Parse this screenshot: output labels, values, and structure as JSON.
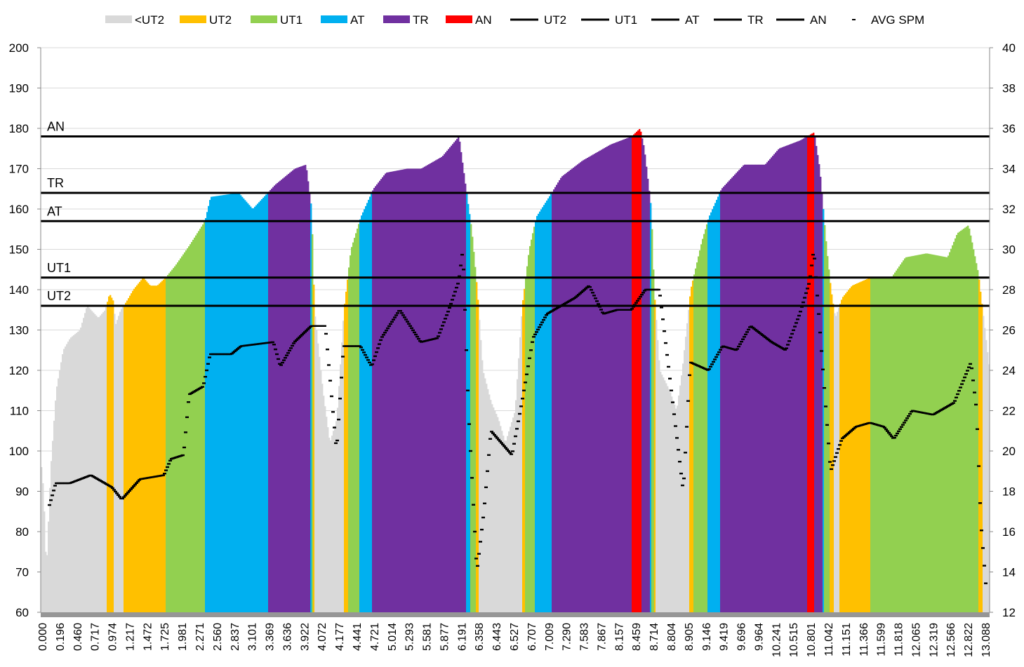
{
  "chart_data": {
    "type": "area",
    "title": "",
    "legend_position": "top",
    "legend": [
      {
        "label": "<UT2",
        "kind": "area",
        "color": "#d9d9d9"
      },
      {
        "label": "UT2",
        "kind": "area",
        "color": "#ffc000"
      },
      {
        "label": "UT1",
        "kind": "area",
        "color": "#92d050"
      },
      {
        "label": "AT",
        "kind": "area",
        "color": "#00b0f0"
      },
      {
        "label": "TR",
        "kind": "area",
        "color": "#7030a0"
      },
      {
        "label": "AN",
        "kind": "area",
        "color": "#ff0000"
      },
      {
        "label": "UT2",
        "kind": "line",
        "color": "#000000"
      },
      {
        "label": "UT1",
        "kind": "line",
        "color": "#000000"
      },
      {
        "label": "AT",
        "kind": "line",
        "color": "#000000"
      },
      {
        "label": "TR",
        "kind": "line",
        "color": "#000000"
      },
      {
        "label": "AN",
        "kind": "line",
        "color": "#000000"
      },
      {
        "label": "AVG SPM",
        "kind": "marker",
        "color": "#000000"
      }
    ],
    "y_left": {
      "min": 60,
      "max": 200,
      "step": 10
    },
    "y_right": {
      "min": 12,
      "max": 40,
      "step": 2
    },
    "grid": true,
    "x_tick_labels": [
      "0.000",
      "0.196",
      "0.460",
      "0.717",
      "0.974",
      "1.217",
      "1.472",
      "1.725",
      "1.981",
      "2.271",
      "2.560",
      "2.837",
      "3.101",
      "3.369",
      "3.636",
      "3.922",
      "4.072",
      "4.177",
      "4.441",
      "4.721",
      "5.014",
      "5.293",
      "5.581",
      "5.877",
      "6.191",
      "6.358",
      "6.443",
      "6.527",
      "6.707",
      "7.009",
      "7.290",
      "7.583",
      "7.867",
      "8.157",
      "8.459",
      "8.714",
      "8.804",
      "8.905",
      "9.146",
      "9.419",
      "9.696",
      "9.964",
      "10.241",
      "10.515",
      "10.801",
      "11.042",
      "11.151",
      "11.366",
      "11.599",
      "11.818",
      "12.065",
      "12.319",
      "12.566",
      "12.822",
      "13.088"
    ],
    "thresholds": [
      {
        "label": "AN",
        "value": 178
      },
      {
        "label": "TR",
        "value": 164
      },
      {
        "label": "AT",
        "value": 157
      },
      {
        "label": "UT1",
        "value": 143
      },
      {
        "label": "UT2",
        "value": 136
      }
    ],
    "zone_colors": {
      "below_UT2": "#d9d9d9",
      "UT2": "#ffc000",
      "UT1": "#92d050",
      "AT": "#00b0f0",
      "TR": "#7030a0",
      "AN": "#ff0000"
    },
    "samples": 676,
    "heart_rate_keypoints": [
      [
        0,
        98
      ],
      [
        2,
        90
      ],
      [
        4,
        70
      ],
      [
        7,
        95
      ],
      [
        11,
        115
      ],
      [
        16,
        125
      ],
      [
        21,
        128
      ],
      [
        28,
        130
      ],
      [
        33,
        136
      ],
      [
        41,
        133
      ],
      [
        46,
        135
      ],
      [
        49,
        139
      ],
      [
        52,
        137
      ],
      [
        53,
        131
      ],
      [
        57,
        135
      ],
      [
        61,
        137
      ],
      [
        66,
        140
      ],
      [
        73,
        143
      ],
      [
        78,
        141
      ],
      [
        83,
        141
      ],
      [
        89,
        143
      ],
      [
        96,
        146
      ],
      [
        106,
        151
      ],
      [
        117,
        157
      ],
      [
        121,
        163
      ],
      [
        141,
        164
      ],
      [
        151,
        160
      ],
      [
        167,
        166
      ],
      [
        181,
        170
      ],
      [
        189,
        171
      ],
      [
        193,
        160
      ],
      [
        195,
        135
      ],
      [
        201,
        115
      ],
      [
        206,
        102
      ],
      [
        211,
        108
      ],
      [
        216,
        135
      ],
      [
        221,
        150
      ],
      [
        228,
        158
      ],
      [
        237,
        165
      ],
      [
        246,
        169
      ],
      [
        261,
        170
      ],
      [
        271,
        170
      ],
      [
        286,
        173
      ],
      [
        298,
        178
      ],
      [
        303,
        165
      ],
      [
        307,
        155
      ],
      [
        311,
        140
      ],
      [
        315,
        120
      ],
      [
        321,
        112
      ],
      [
        326,
        108
      ],
      [
        331,
        102
      ],
      [
        338,
        110
      ],
      [
        343,
        136
      ],
      [
        348,
        150
      ],
      [
        353,
        158
      ],
      [
        364,
        164
      ],
      [
        371,
        168
      ],
      [
        386,
        172
      ],
      [
        406,
        176
      ],
      [
        421,
        178
      ],
      [
        427,
        180
      ],
      [
        430,
        175
      ],
      [
        435,
        160
      ],
      [
        437,
        140
      ],
      [
        441,
        120
      ],
      [
        448,
        115
      ],
      [
        453,
        110
      ],
      [
        457,
        120
      ],
      [
        463,
        140
      ],
      [
        471,
        152
      ],
      [
        476,
        158
      ],
      [
        485,
        165
      ],
      [
        501,
        171
      ],
      [
        516,
        171
      ],
      [
        526,
        175
      ],
      [
        541,
        177
      ],
      [
        551,
        179
      ],
      [
        555,
        170
      ],
      [
        560,
        150
      ],
      [
        563,
        140
      ],
      [
        566,
        133
      ],
      [
        571,
        138
      ],
      [
        578,
        141
      ],
      [
        591,
        143
      ],
      [
        606,
        143
      ],
      [
        616,
        148
      ],
      [
        631,
        149
      ],
      [
        646,
        148
      ],
      [
        653,
        154
      ],
      [
        661,
        156
      ],
      [
        668,
        144
      ],
      [
        671,
        135
      ],
      [
        676,
        120
      ]
    ],
    "avg_spm_keypoints": [
      [
        6,
        17.2
      ],
      [
        11,
        18.4
      ],
      [
        21,
        18.4
      ],
      [
        36,
        18.8
      ],
      [
        51,
        18.2
      ],
      [
        58,
        17.6
      ],
      [
        71,
        18.6
      ],
      [
        88,
        18.8
      ],
      [
        93,
        19.6
      ],
      [
        102,
        19.8
      ],
      [
        106,
        22.8
      ],
      [
        116,
        23.2
      ],
      [
        121,
        24.8
      ],
      [
        136,
        24.8
      ],
      [
        143,
        25.2
      ],
      [
        166,
        25.4
      ],
      [
        171,
        24.2
      ],
      [
        181,
        25.4
      ],
      [
        193,
        26.2
      ],
      [
        203,
        26.2
      ],
      [
        211,
        20
      ],
      [
        216,
        25.2
      ],
      [
        228,
        25.2
      ],
      [
        236,
        24.2
      ],
      [
        243,
        25.6
      ],
      [
        256,
        27
      ],
      [
        271,
        25.4
      ],
      [
        283,
        25.6
      ],
      [
        291,
        27
      ],
      [
        298,
        28.4
      ],
      [
        301,
        30
      ],
      [
        305,
        22
      ],
      [
        311,
        14
      ],
      [
        316,
        17
      ],
      [
        321,
        21
      ],
      [
        336,
        19.8
      ],
      [
        343,
        22.4
      ],
      [
        351,
        25.6
      ],
      [
        361,
        26.8
      ],
      [
        381,
        27.6
      ],
      [
        391,
        28.2
      ],
      [
        401,
        26.8
      ],
      [
        411,
        27
      ],
      [
        421,
        27
      ],
      [
        431,
        28
      ],
      [
        441,
        28
      ],
      [
        458,
        18
      ],
      [
        463,
        24.4
      ],
      [
        476,
        24
      ],
      [
        486,
        25.2
      ],
      [
        496,
        25
      ],
      [
        506,
        26.2
      ],
      [
        521,
        25.4
      ],
      [
        531,
        25
      ],
      [
        541,
        26.8
      ],
      [
        548,
        28.4
      ],
      [
        551,
        30
      ],
      [
        563,
        19
      ],
      [
        571,
        20.6
      ],
      [
        581,
        21.2
      ],
      [
        591,
        21.4
      ],
      [
        601,
        21.2
      ],
      [
        608,
        20.6
      ],
      [
        621,
        22
      ],
      [
        636,
        21.8
      ],
      [
        651,
        22.4
      ],
      [
        663,
        24.4
      ],
      [
        667,
        22
      ],
      [
        670,
        16.5
      ],
      [
        674,
        13
      ]
    ]
  }
}
